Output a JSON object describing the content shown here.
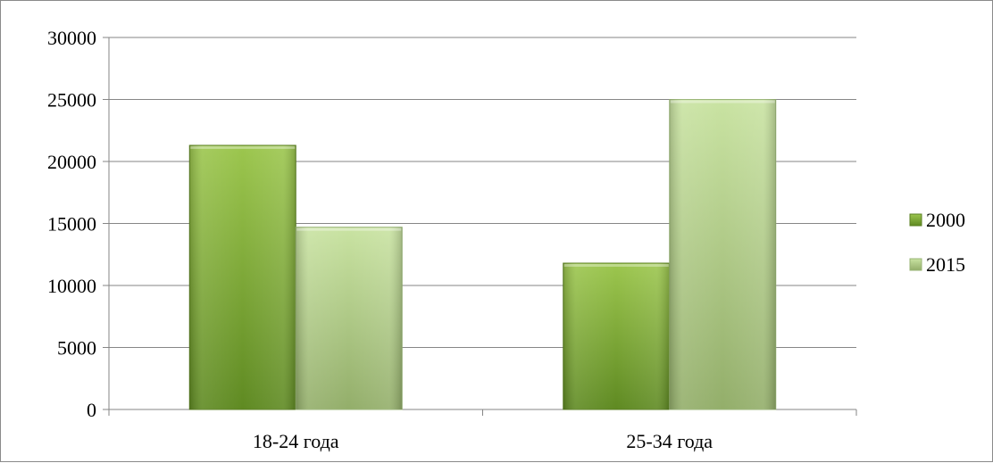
{
  "chart_data": {
    "type": "bar",
    "categories": [
      "18-24 года",
      "25-34 года"
    ],
    "series": [
      {
        "name": "2000",
        "values": [
          21300,
          11800
        ],
        "color": "#7FAE38"
      },
      {
        "name": "2015",
        "values": [
          14700,
          25000
        ],
        "color": "#B8D58A"
      }
    ],
    "y_ticks": [
      "0",
      "5000",
      "10000",
      "15000",
      "20000",
      "25000",
      "30000"
    ],
    "ylim": [
      0,
      30000
    ],
    "grid": true,
    "legend_position": "right"
  }
}
